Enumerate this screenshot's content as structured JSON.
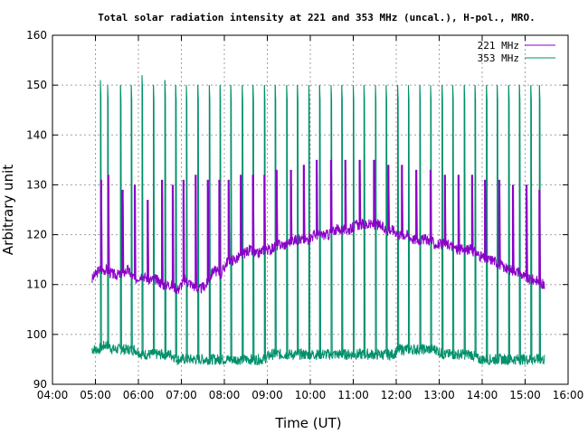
{
  "chart_data": {
    "type": "line",
    "title": "Total solar radiation intensity at 221 and 353 MHz (uncal.), H-pol., MRO.",
    "xlabel": "Time (UT)",
    "ylabel": "Arbitrary unit",
    "x_ticks": [
      "04:00",
      "05:00",
      "06:00",
      "07:00",
      "08:00",
      "09:00",
      "10:00",
      "11:00",
      "12:00",
      "13:00",
      "14:00",
      "15:00",
      "16:00"
    ],
    "y_ticks": [
      "90",
      "100",
      "110",
      "120",
      "130",
      "140",
      "150",
      "160"
    ],
    "xlim": [
      "04:00",
      "16:00"
    ],
    "ylim": [
      90,
      160
    ],
    "grid": true,
    "legend_position": "top-right",
    "series": [
      {
        "name": "221 MHz",
        "color": "#8b00c8",
        "x": [
          "04:55",
          "05:05",
          "05:15",
          "05:25",
          "05:35",
          "05:45",
          "05:55",
          "06:05",
          "06:15",
          "06:25",
          "06:35",
          "06:45",
          "06:55",
          "07:05",
          "07:15",
          "07:25",
          "07:35",
          "07:45",
          "07:55",
          "08:05",
          "08:15",
          "08:25",
          "08:35",
          "08:45",
          "08:55",
          "09:05",
          "09:15",
          "09:25",
          "09:35",
          "09:45",
          "09:55",
          "10:05",
          "10:15",
          "10:25",
          "10:35",
          "10:45",
          "10:55",
          "11:05",
          "11:15",
          "11:25",
          "11:35",
          "11:45",
          "11:55",
          "12:05",
          "12:15",
          "12:25",
          "12:35",
          "12:45",
          "12:55",
          "13:05",
          "13:15",
          "13:25",
          "13:35",
          "13:45",
          "13:55",
          "14:05",
          "14:15",
          "14:25",
          "14:35",
          "14:45",
          "14:55",
          "15:05",
          "15:15",
          "15:25"
        ],
        "y": [
          111,
          113,
          113,
          112,
          112,
          113,
          111,
          112,
          111,
          111,
          110,
          110,
          109,
          111,
          110,
          109,
          110,
          113,
          112,
          115,
          115,
          116,
          117,
          116,
          117,
          117,
          118,
          118,
          119,
          119,
          119,
          120,
          120,
          120,
          121,
          121,
          121,
          122,
          122,
          122,
          122,
          121,
          121,
          120,
          120,
          119,
          119,
          119,
          118,
          118,
          118,
          117,
          117,
          117,
          116,
          115,
          115,
          114,
          113,
          113,
          112,
          111,
          111,
          110
        ],
        "peaks": {
          "x": [
            "05:08",
            "05:18",
            "05:38",
            "05:55",
            "06:13",
            "06:33",
            "06:48",
            "07:03",
            "07:20",
            "07:37",
            "07:53",
            "08:06",
            "08:23",
            "08:40",
            "08:56",
            "09:13",
            "09:33",
            "09:51",
            "10:09",
            "10:29",
            "10:49",
            "11:09",
            "11:29",
            "11:49",
            "12:08",
            "12:28",
            "12:48",
            "13:08",
            "13:27",
            "13:46",
            "14:04",
            "14:24",
            "14:43",
            "15:02",
            "15:20"
          ],
          "y": [
            131,
            132,
            129,
            130,
            127,
            131,
            130,
            131,
            132,
            131,
            131,
            131,
            132,
            132,
            132,
            133,
            133,
            134,
            135,
            135,
            135,
            135,
            135,
            134,
            134,
            133,
            133,
            132,
            132,
            132,
            131,
            131,
            130,
            130,
            129
          ]
        }
      },
      {
        "name": "353 MHz",
        "color": "#00906b",
        "x": [
          "04:55",
          "05:05",
          "05:15",
          "05:25",
          "05:35",
          "05:45",
          "05:55",
          "06:05",
          "06:15",
          "06:25",
          "06:35",
          "06:45",
          "06:55",
          "07:05",
          "07:15",
          "07:25",
          "07:35",
          "07:45",
          "07:55",
          "08:05",
          "08:15",
          "08:25",
          "08:35",
          "08:45",
          "08:55",
          "09:05",
          "09:15",
          "09:25",
          "09:35",
          "09:45",
          "09:55",
          "10:05",
          "10:15",
          "10:25",
          "10:35",
          "10:45",
          "10:55",
          "11:05",
          "11:15",
          "11:25",
          "11:35",
          "11:45",
          "11:55",
          "12:05",
          "12:15",
          "12:25",
          "12:35",
          "12:45",
          "12:55",
          "13:05",
          "13:15",
          "13:25",
          "13:35",
          "13:45",
          "13:55",
          "14:05",
          "14:15",
          "14:25",
          "14:35",
          "14:45",
          "14:55",
          "15:05",
          "15:15",
          "15:25"
        ],
        "y": [
          97,
          97,
          98,
          97,
          97,
          97,
          97,
          96,
          96,
          96,
          96,
          96,
          95,
          95,
          95,
          95,
          95,
          95,
          95,
          95,
          95,
          95,
          95,
          95,
          95,
          96,
          96,
          96,
          96,
          96,
          96,
          96,
          96,
          96,
          96,
          96,
          96,
          96,
          96,
          96,
          96,
          96,
          96,
          97,
          97,
          97,
          97,
          97,
          97,
          96,
          96,
          96,
          96,
          96,
          95,
          95,
          95,
          95,
          95,
          95,
          95,
          95,
          95,
          95
        ],
        "peaks": {
          "x": [
            "05:07",
            "05:17",
            "05:35",
            "05:50",
            "06:05",
            "06:21",
            "06:37",
            "06:52",
            "07:07",
            "07:23",
            "07:39",
            "07:54",
            "08:09",
            "08:25",
            "08:40",
            "08:56",
            "09:11",
            "09:27",
            "09:42",
            "09:58",
            "10:13",
            "10:29",
            "10:44",
            "11:00",
            "11:15",
            "11:31",
            "11:46",
            "12:02",
            "12:17",
            "12:33",
            "12:48",
            "13:04",
            "13:19",
            "13:35",
            "13:50",
            "14:06",
            "14:21",
            "14:37",
            "14:52",
            "15:08",
            "15:20"
          ],
          "y": [
            151,
            150,
            150,
            150,
            152,
            150,
            151,
            150,
            150,
            150,
            150,
            150,
            150,
            150,
            150,
            150,
            150,
            150,
            150,
            150,
            150,
            150,
            150,
            150,
            150,
            150,
            150,
            150,
            150,
            150,
            150,
            150,
            150,
            150,
            150,
            150,
            150,
            150,
            150,
            150,
            150
          ]
        }
      }
    ]
  }
}
